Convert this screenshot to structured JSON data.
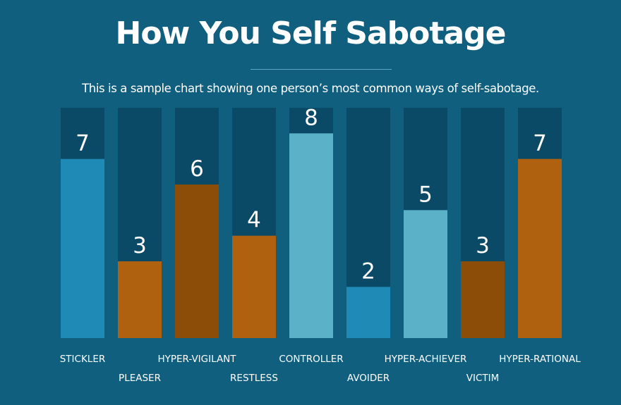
{
  "title": "How You Self Sabotage",
  "subtitle": "This is a sample chart showing one person’s most common ways of self-sabotage.",
  "chart_data": {
    "type": "bar",
    "title": "How You Self Sabotage",
    "subtitle": "This is a sample chart showing one person’s most common ways of self-sabotage.",
    "categories": [
      "STICKLER",
      "PLEASER",
      "HYPER-VIGILANT",
      "RESTLESS",
      "CONTROLLER",
      "AVOIDER",
      "HYPER-ACHIEVER",
      "VICTIM",
      "HYPER-RATIONAL"
    ],
    "values": [
      7,
      3,
      6,
      4,
      8,
      2,
      5,
      3,
      7
    ],
    "ylim": [
      0,
      8
    ],
    "grid": false,
    "legend": "none",
    "data_labels": true,
    "bar_colors": [
      "#1e8ab5",
      "#b0610f",
      "#8c4d09",
      "#b0610f",
      "#5bb1c8",
      "#1e8ab5",
      "#5bb1c8",
      "#8c4d09",
      "#b0610f"
    ],
    "track_color": "#0a4a66",
    "label_color": "#ffffff"
  }
}
